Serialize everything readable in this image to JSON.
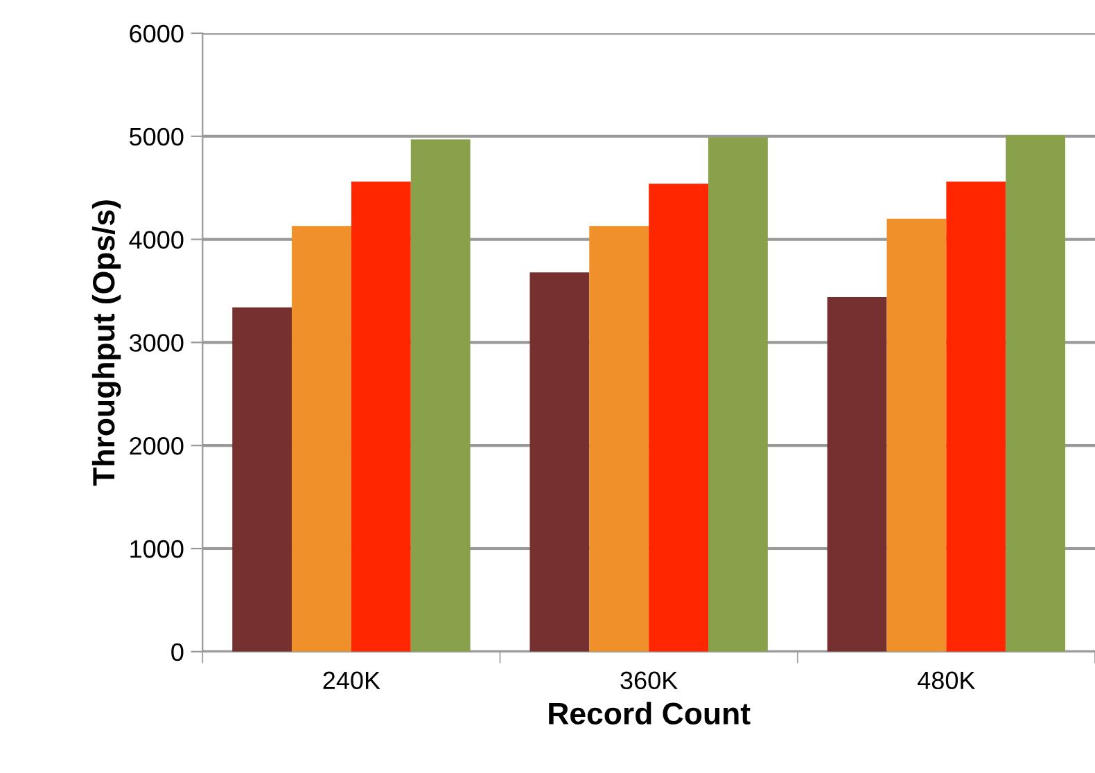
{
  "chart_data": {
    "type": "bar",
    "xlabel": "Record Count",
    "ylabel": "Throughput (Ops/s)",
    "categories": [
      "240K",
      "360K",
      "480K"
    ],
    "series": [
      {
        "color": "#773030",
        "values": [
          3340,
          3680,
          3440
        ]
      },
      {
        "color": "#f0902a",
        "values": [
          4130,
          4130,
          4200
        ]
      },
      {
        "color": "#ff2600",
        "values": [
          4560,
          4540,
          4560
        ]
      },
      {
        "color": "#8aa14c",
        "values": [
          4970,
          4990,
          5010
        ]
      }
    ],
    "ylim": [
      0,
      6000
    ],
    "yticks": [
      0,
      1000,
      2000,
      3000,
      4000,
      5000,
      6000
    ],
    "grid": "y",
    "legend": false
  }
}
